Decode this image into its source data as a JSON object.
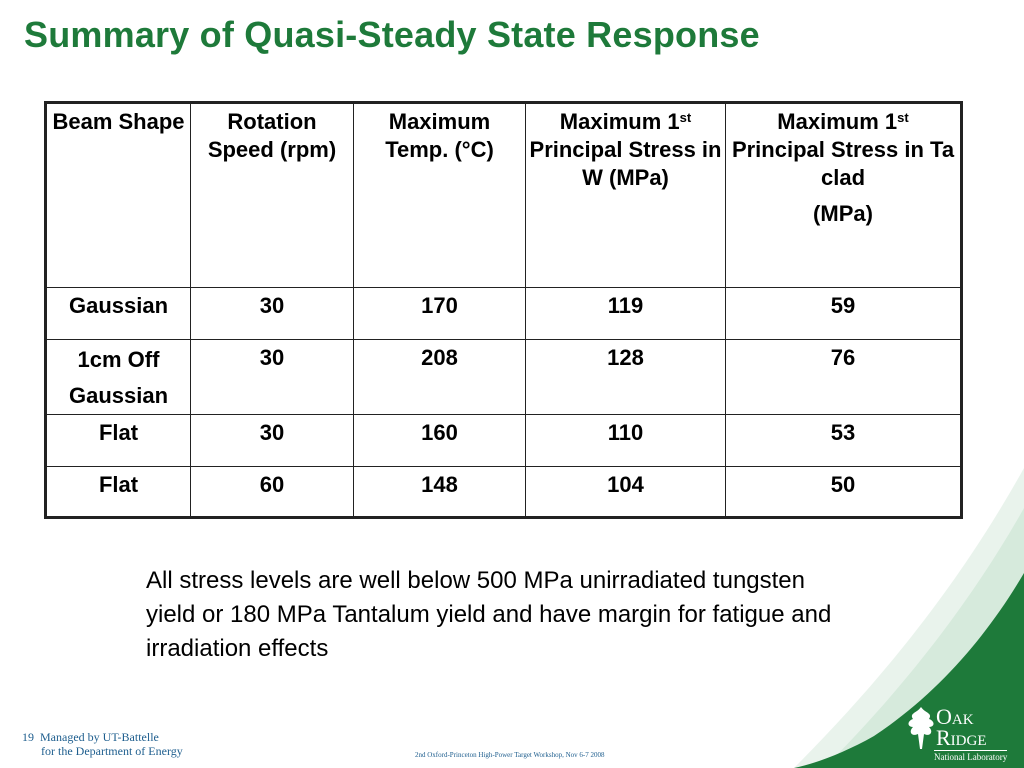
{
  "slide": {
    "title": "Summary of Quasi-Steady State Response",
    "note": "All stress levels are well below 500 MPa unirradiated tungsten yield or 180 MPa Tantalum yield and have margin for fatigue and irradiation effects",
    "page_number": "19",
    "managed_line1": "Managed by UT-Battelle",
    "managed_line2": "for the Department of Energy",
    "workshop": "2nd Oxford-Princeton High-Power Target Workshop, Nov 6-7 2008",
    "logo_line1": "Oak",
    "logo_line2": "Ridge",
    "logo_sub": "National Laboratory"
  },
  "table": {
    "headers": {
      "beam_shape": "Beam Shape",
      "rotation_speed": "Rotation Speed (rpm)",
      "max_temp": "Maximum Temp. (°C)",
      "stress_w_pre": "Maximum 1",
      "stress_w_sup": "st",
      "stress_w_post": "Principal Stress in W (MPa)",
      "stress_ta_pre": "Maximum 1",
      "stress_ta_sup": "st",
      "stress_ta_post": "Principal Stress in Ta clad",
      "stress_ta_unit": "(MPa)"
    },
    "rows": [
      {
        "beam_shape": "Gaussian",
        "speed": "30",
        "temp": "170",
        "stress_w": "119",
        "stress_ta": "59"
      },
      {
        "beam_shape_line1": "1cm Off",
        "beam_shape_line2": "Gaussian",
        "speed": "30",
        "temp": "208",
        "stress_w": "128",
        "stress_ta": "76"
      },
      {
        "beam_shape": "Flat",
        "speed": "30",
        "temp": "160",
        "stress_w": "110",
        "stress_ta": "53"
      },
      {
        "beam_shape": "Flat",
        "speed": "60",
        "temp": "148",
        "stress_w": "104",
        "stress_ta": "50"
      }
    ]
  },
  "colors": {
    "title_green": "#1e7a3a",
    "footer_blue": "#1e5e8e",
    "logo_green": "#1e7a3a"
  }
}
